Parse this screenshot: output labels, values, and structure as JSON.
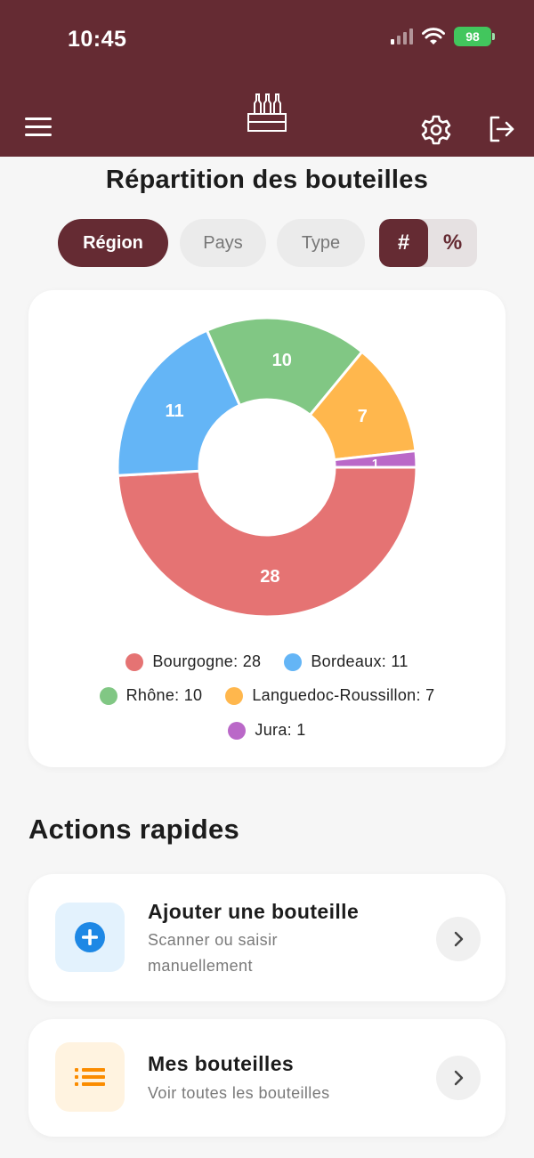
{
  "status_bar": {
    "time": "10:45",
    "battery": "98"
  },
  "header": {
    "menu_icon": "hamburger-menu-icon",
    "logo_icon": "wine-crate-icon",
    "settings_icon": "gear-icon",
    "logout_icon": "logout-icon",
    "color": "#652b33"
  },
  "title": "Répartition des bouteilles",
  "filters": {
    "tabs": [
      {
        "label": "Région",
        "active": true
      },
      {
        "label": "Pays",
        "active": false
      },
      {
        "label": "Type",
        "active": false
      }
    ],
    "display_mode": [
      {
        "label": "#",
        "active": true
      },
      {
        "label": "%",
        "active": false
      }
    ]
  },
  "chart_data": {
    "type": "pie",
    "variant": "donut",
    "categories": [
      "Bourgogne",
      "Bordeaux",
      "Rhône",
      "Languedoc-Roussillon",
      "Jura"
    ],
    "values": [
      28,
      11,
      10,
      7,
      1
    ],
    "colors": [
      "#e57373",
      "#64b5f6",
      "#81c784",
      "#ffb74d",
      "#ba68c8"
    ],
    "slice_labels": [
      "28",
      "11",
      "10",
      "7",
      "1"
    ],
    "legend": [
      {
        "label": "Bourgogne: 28",
        "color": "#e57373"
      },
      {
        "label": "Bordeaux: 11",
        "color": "#64b5f6"
      },
      {
        "label": "Rhône: 10",
        "color": "#81c784"
      },
      {
        "label": "Languedoc-Roussillon: 7",
        "color": "#ffb74d"
      },
      {
        "label": "Jura: 1",
        "color": "#ba68c8"
      }
    ],
    "legend_position": "bottom"
  },
  "quick_actions": {
    "title": "Actions rapides",
    "items": [
      {
        "title": "Ajouter une bouteille",
        "subtitle": "Scanner ou saisir manuellement",
        "icon": "add-circle-icon",
        "icon_color": "#1e88e5",
        "icon_bg": "#e3f2fd"
      },
      {
        "title": "Mes bouteilles",
        "subtitle": "Voir toutes les bouteilles",
        "icon": "list-icon",
        "icon_color": "#fb8c00",
        "icon_bg": "#fff3e0"
      }
    ],
    "chevron_icon": "chevron-right-icon"
  }
}
